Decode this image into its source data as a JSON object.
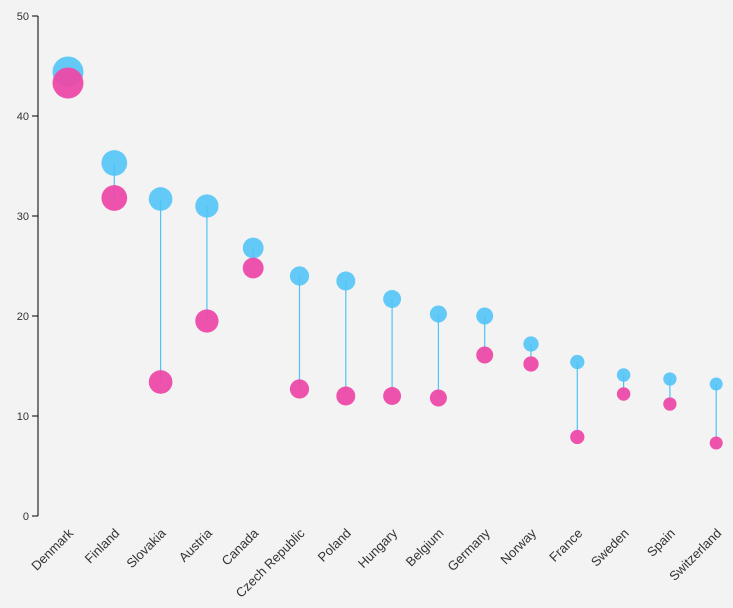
{
  "chart_data": {
    "type": "scatter",
    "title": "",
    "xlabel": "",
    "ylabel": "",
    "ylim": [
      0,
      50
    ],
    "yticks": [
      0,
      10,
      20,
      30,
      40,
      50
    ],
    "grid": false,
    "categories": [
      "Denmark",
      "Finland",
      "Slovakia",
      "Austria",
      "Canada",
      "Czech Republic",
      "Poland",
      "Hungary",
      "Belgium",
      "Germany",
      "Norway",
      "France",
      "Sweden",
      "Spain",
      "Switzerland"
    ],
    "series": [
      {
        "color": "#4fc3f7",
        "values": [
          44.4,
          35.3,
          31.7,
          31.0,
          26.8,
          24.0,
          23.5,
          21.7,
          20.2,
          20.0,
          17.2,
          15.4,
          14.1,
          13.7,
          13.2
        ]
      },
      {
        "color": "#ec4aa8",
        "values": [
          43.3,
          31.8,
          13.4,
          19.5,
          24.8,
          12.7,
          12.0,
          12.0,
          11.8,
          16.1,
          15.2,
          7.9,
          12.2,
          11.2,
          7.3
        ]
      }
    ]
  }
}
